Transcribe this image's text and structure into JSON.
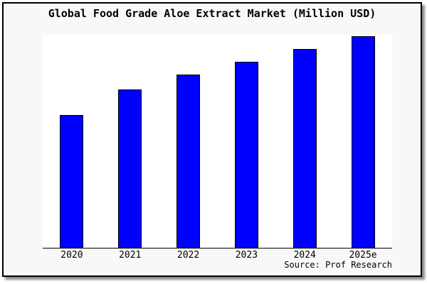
{
  "chart": {
    "title": "Global Food Grade Aloe Extract Market (Million USD)",
    "source": "Source: Prof Research"
  },
  "chart_data": {
    "type": "bar",
    "title": "Global Food Grade Aloe Extract Market (Million USD)",
    "categories": [
      "2020",
      "2021",
      "2022",
      "2023",
      "2024",
      "2025e"
    ],
    "values": [
      62.9,
      74.9,
      81.9,
      88.0,
      94.0,
      100.0
    ],
    "value_note": "No y-axis ticks or data labels are shown in the image; values are relative estimates read from bar heights, normalized so 2025e = 100.",
    "xlabel": "",
    "ylabel": "",
    "ylim": [
      0,
      100.7
    ],
    "grid": false,
    "legend": false,
    "bar_color": "#0000ff",
    "bar_edge_color": "#000000",
    "plot_bg": "#ffffff",
    "outer_bg": "#f8f8f8",
    "source": "Source: Prof Research"
  }
}
